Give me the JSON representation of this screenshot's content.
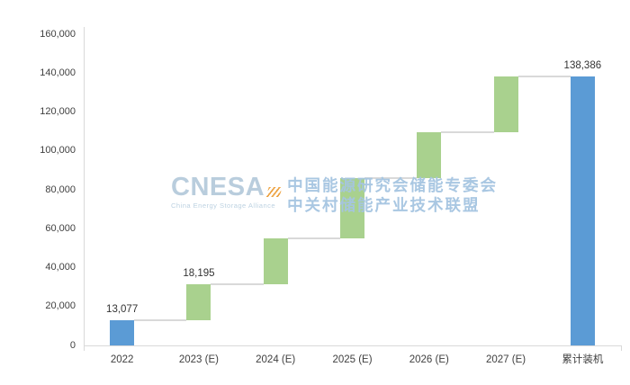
{
  "watermark": {
    "logo_text": "CNESA",
    "logo_subtitle": "China Energy Storage Alliance",
    "org_line1": "中国能源研究会储能专委会",
    "org_line2": "中关村储能产业技术联盟",
    "logo_color": "#b6cbdc",
    "org_color": "#a5c5e1",
    "stripe_color": "#eda03c"
  },
  "chart_data": {
    "type": "bar",
    "subtype": "waterfall",
    "title": "",
    "xlabel": "",
    "ylabel": "",
    "ylim": [
      0,
      160000
    ],
    "grid": false,
    "legend": false,
    "y_axis": {
      "min": 0,
      "max": 160000,
      "step": 20000,
      "ticks": [
        {
          "value": 0,
          "label": "0"
        },
        {
          "value": 20000,
          "label": "20,000"
        },
        {
          "value": 40000,
          "label": "40,000"
        },
        {
          "value": 60000,
          "label": "60,000"
        },
        {
          "value": 80000,
          "label": "80,000"
        },
        {
          "value": 100000,
          "label": "100,000"
        },
        {
          "value": 120000,
          "label": "120,000"
        },
        {
          "value": 140000,
          "label": "140,000"
        },
        {
          "value": 160000,
          "label": "160,000"
        }
      ]
    },
    "bars": [
      {
        "category": "2022",
        "start": 0,
        "end": 13077,
        "type": "total",
        "label": "13,077"
      },
      {
        "category": "2023 (E)",
        "start": 13077,
        "end": 31272,
        "type": "increase",
        "label": "18,195"
      },
      {
        "category": "2024 (E)",
        "start": 31272,
        "end": 55000,
        "type": "increase",
        "label": "",
        "estimated": true
      },
      {
        "category": "2025 (E)",
        "start": 55000,
        "end": 86000,
        "type": "increase",
        "label": "",
        "estimated": true
      },
      {
        "category": "2026 (E)",
        "start": 86000,
        "end": 109600,
        "type": "increase",
        "label": "",
        "estimated": true
      },
      {
        "category": "2027 (E)",
        "start": 109600,
        "end": 138386,
        "type": "increase",
        "label": ""
      },
      {
        "category": "累计装机",
        "start": 0,
        "end": 138386,
        "type": "total",
        "label": "138,386"
      }
    ],
    "colors": {
      "total": "#5b9bd5",
      "increase": "#a9d18e",
      "connector": "#d9d9d9",
      "axis": "#d9d9d9",
      "tick_label": "#404040",
      "data_label": "#333333"
    }
  }
}
